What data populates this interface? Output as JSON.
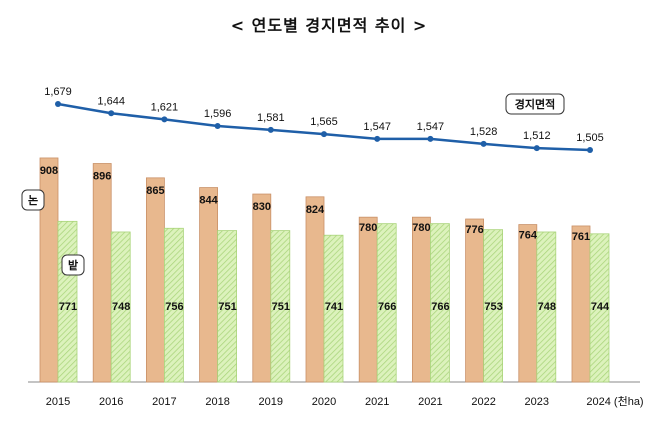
{
  "title": "< 연도별 경지면적 추이 >",
  "chart_data": {
    "type": "bar+line",
    "title": "< 연도별 경지면적 추이 >",
    "unit": "(천ha)",
    "categories": [
      "2015",
      "2016",
      "2017",
      "2018",
      "2019",
      "2020",
      "2021",
      "2021",
      "2022",
      "2023",
      "2024"
    ],
    "series": [
      {
        "name": "논",
        "type": "bar",
        "color": "#E8B88E",
        "values": [
          908,
          896,
          865,
          844,
          830,
          824,
          780,
          780,
          776,
          764,
          761
        ]
      },
      {
        "name": "밭",
        "type": "bar",
        "color": "#D4EDAE",
        "values": [
          771,
          748,
          756,
          751,
          751,
          741,
          766,
          766,
          753,
          748,
          744
        ]
      },
      {
        "name": "경지면적",
        "type": "line",
        "color": "#1F5FA8",
        "values": [
          1679,
          1644,
          1621,
          1596,
          1581,
          1565,
          1547,
          1547,
          1528,
          1512,
          1505
        ]
      }
    ],
    "grid": false
  }
}
